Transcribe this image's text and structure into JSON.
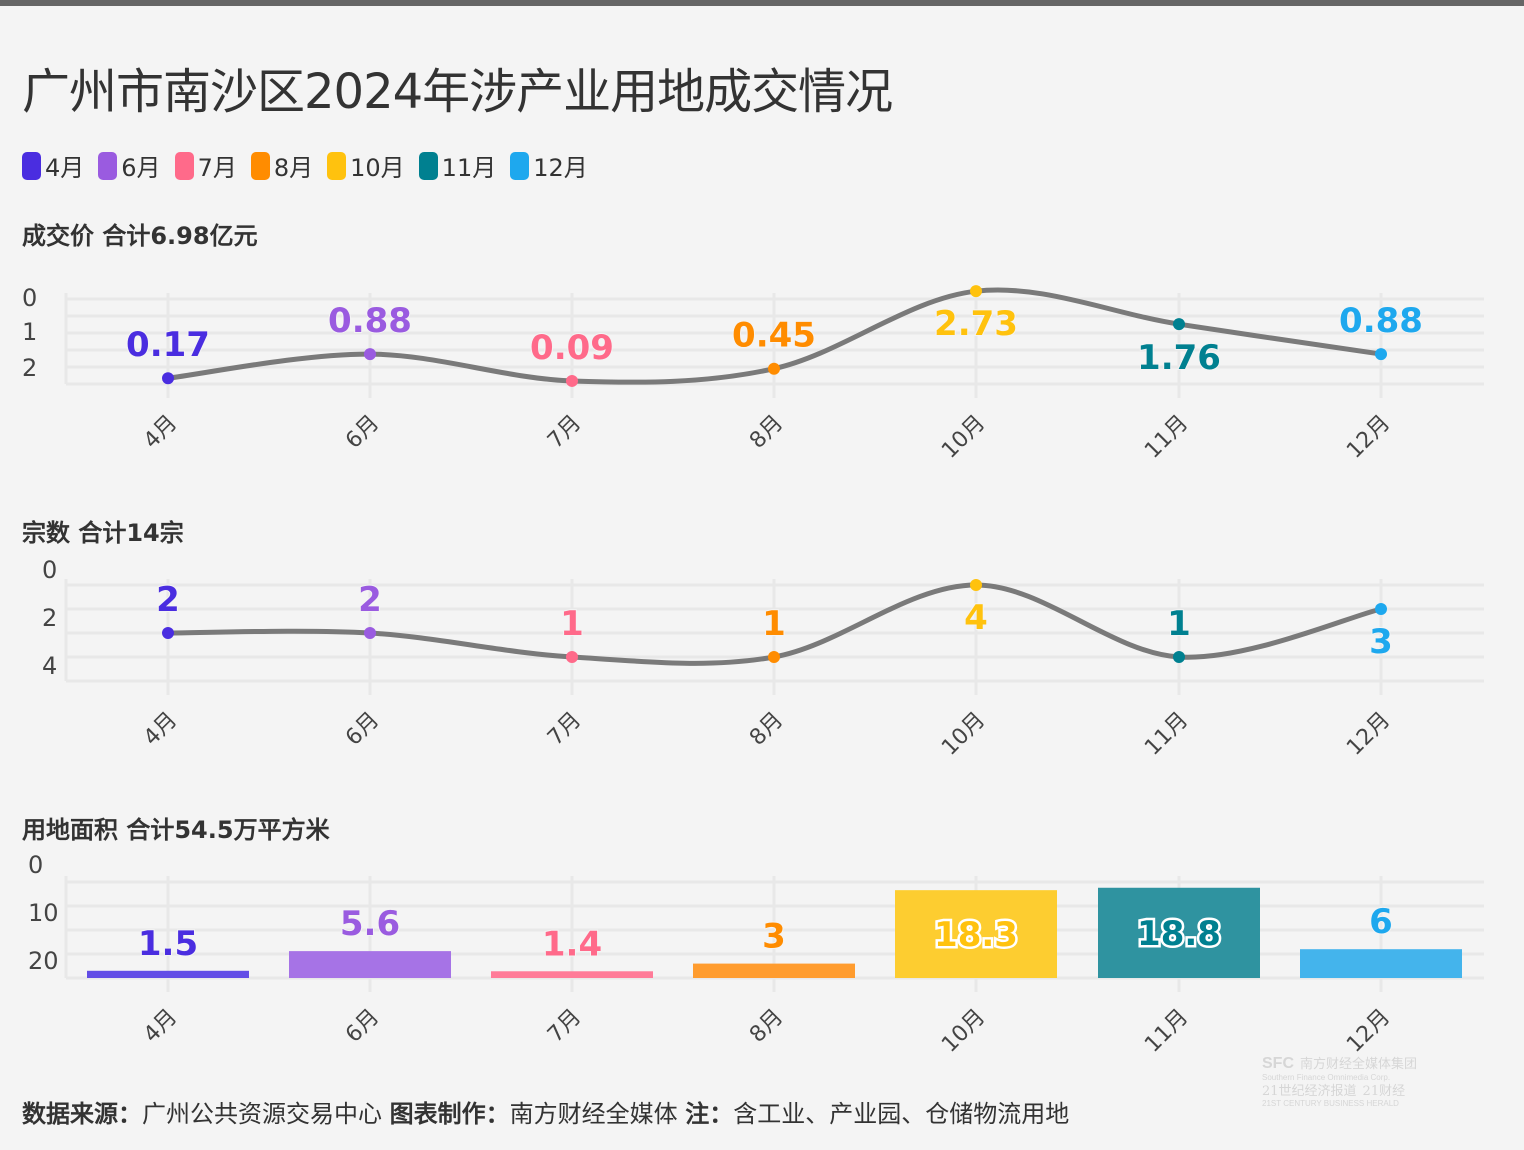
{
  "title": "广州市南沙区2024年涉产业用地成交情况",
  "legend": [
    {
      "label": "4月",
      "color": "#4a2de0"
    },
    {
      "label": "6月",
      "color": "#9a5be0"
    },
    {
      "label": "7月",
      "color": "#ff6a8a"
    },
    {
      "label": "8月",
      "color": "#ff8c00"
    },
    {
      "label": "10月",
      "color": "#ffc20e"
    },
    {
      "label": "11月",
      "color": "#008090"
    },
    {
      "label": "12月",
      "color": "#1ea8ee"
    }
  ],
  "chart_data": [
    {
      "type": "line",
      "title": "成交价 合计6.98亿元",
      "categories": [
        "4月",
        "6月",
        "7月",
        "8月",
        "10月",
        "11月",
        "12月"
      ],
      "values": [
        0.17,
        0.88,
        0.09,
        0.45,
        2.73,
        1.76,
        0.88
      ],
      "labels": [
        "0.17",
        "0.88",
        "0.09",
        "0.45",
        "2.73",
        "1.76",
        "0.88"
      ],
      "yticks": [
        "0",
        "1",
        "2"
      ],
      "ylim": [
        0,
        2.7
      ],
      "grid": true,
      "line_color": "#7a7a7a"
    },
    {
      "type": "line",
      "title": "宗数 合计14宗",
      "categories": [
        "4月",
        "6月",
        "7月",
        "8月",
        "10月",
        "11月",
        "12月"
      ],
      "values": [
        2,
        2,
        1,
        1,
        4,
        1,
        3
      ],
      "labels": [
        "2",
        "2",
        "1",
        "1",
        "4",
        "1",
        "3"
      ],
      "yticks": [
        "0",
        "2",
        "4"
      ],
      "ylim": [
        0,
        4
      ],
      "grid": true,
      "line_color": "#7a7a7a"
    },
    {
      "type": "bar",
      "title": "用地面积 合计54.5万平方米",
      "categories": [
        "4月",
        "6月",
        "7月",
        "8月",
        "10月",
        "11月",
        "12月"
      ],
      "values": [
        1.5,
        5.6,
        1.4,
        3,
        18.3,
        18.8,
        6
      ],
      "labels": [
        "1.5",
        "5.6",
        "1.4",
        "3",
        "18.3",
        "18.8",
        "6"
      ],
      "yticks": [
        "0",
        "10",
        "20"
      ],
      "ylim": [
        0,
        20
      ],
      "grid": true
    }
  ],
  "footer": {
    "source_label": "数据来源：",
    "source_value": "广州公共资源交易中心",
    "maker_label": "图表制作：",
    "maker_value": "南方财经全媒体",
    "note_label": "注：",
    "note_value": "含工业、产业园、仓储物流用地"
  },
  "watermark": {
    "line1": "南方财经全媒体集团",
    "line1_en": "Southern Finance Omnimedia Corp.",
    "brand": "SFC",
    "line2": "21世纪经济报道",
    "line2_en": "21ST CENTURY BUSINESS HERALD",
    "line3": "21财经"
  }
}
